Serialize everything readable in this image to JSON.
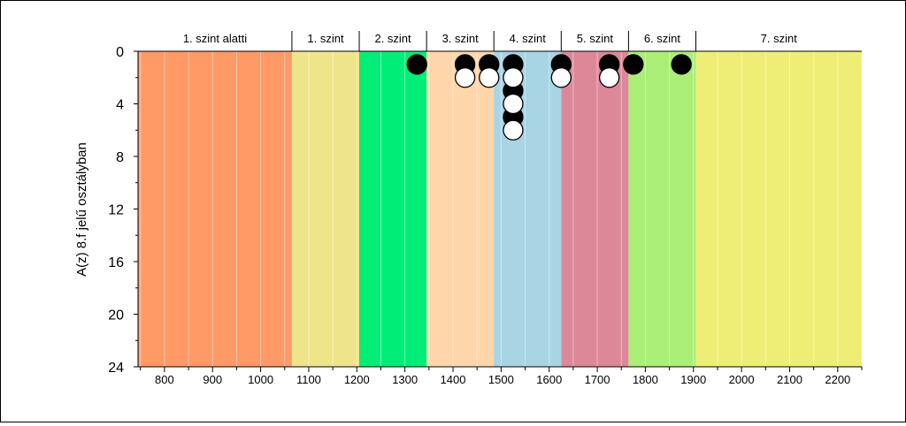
{
  "chart_data": {
    "type": "scatter",
    "ylabel": "A(z) 8.f jelű osztályban",
    "xlim": [
      745,
      2250
    ],
    "ylim": [
      0,
      24
    ],
    "y_inverted": true,
    "x_ticks": [
      800,
      900,
      1000,
      1100,
      1200,
      1300,
      1400,
      1500,
      1600,
      1700,
      1800,
      1900,
      2000,
      2100,
      2200
    ],
    "y_ticks": [
      0,
      4,
      8,
      12,
      16,
      20,
      24
    ],
    "levels": [
      {
        "label": "1. szint alatti",
        "from": 745,
        "to": 1065,
        "color": "#FF9966"
      },
      {
        "label": "1. szint",
        "from": 1065,
        "to": 1205,
        "color": "#EEE48A"
      },
      {
        "label": "2. szint",
        "from": 1205,
        "to": 1345,
        "color": "#00EE77"
      },
      {
        "label": "3. szint",
        "from": 1345,
        "to": 1485,
        "color": "#FFD6AA"
      },
      {
        "label": "4. szint",
        "from": 1485,
        "to": 1625,
        "color": "#A8D4E4"
      },
      {
        "label": "5. szint",
        "from": 1625,
        "to": 1765,
        "color": "#DD8899"
      },
      {
        "label": "6. szint",
        "from": 1765,
        "to": 1905,
        "color": "#AAEE77"
      },
      {
        "label": "7. szint",
        "from": 1905,
        "to": 2250,
        "color": "#EEEE77"
      }
    ],
    "series": [
      {
        "marker": "filled",
        "color": "#000000",
        "points": [
          [
            1325,
            1
          ],
          [
            1425,
            1
          ],
          [
            1475,
            1
          ],
          [
            1525,
            1
          ],
          [
            1525,
            3
          ],
          [
            1525,
            5
          ],
          [
            1625,
            1
          ],
          [
            1725,
            1
          ],
          [
            1775,
            1
          ],
          [
            1875,
            1
          ]
        ]
      },
      {
        "marker": "open",
        "color": "#ffffff",
        "points": [
          [
            1425,
            2
          ],
          [
            1475,
            2
          ],
          [
            1525,
            2
          ],
          [
            1525,
            4
          ],
          [
            1525,
            6
          ],
          [
            1625,
            2
          ],
          [
            1725,
            2
          ]
        ]
      }
    ]
  }
}
